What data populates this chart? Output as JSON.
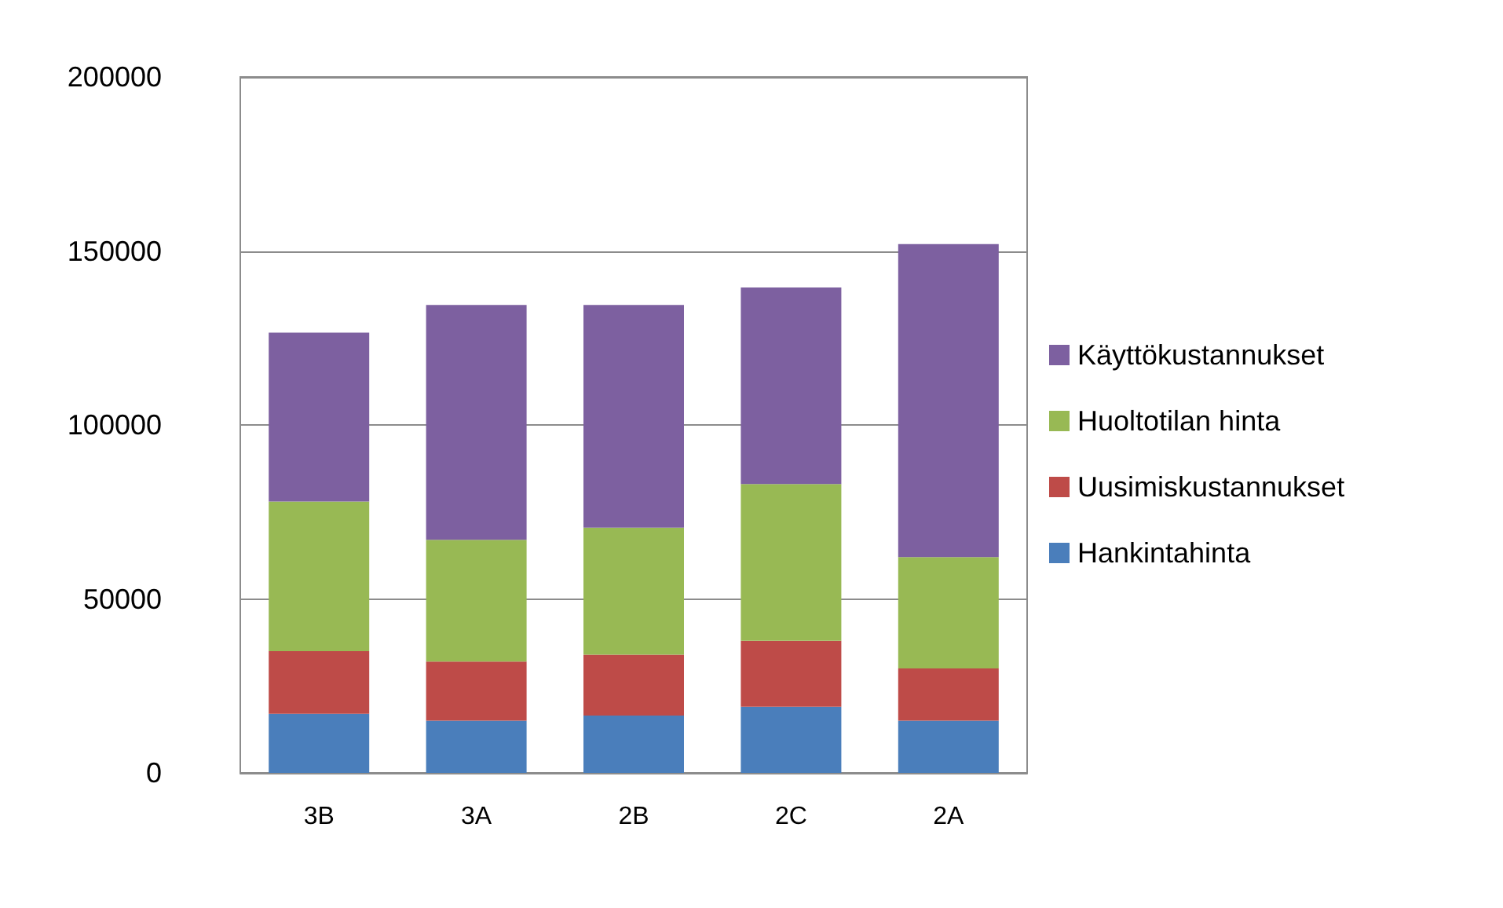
{
  "chart_data": {
    "type": "bar",
    "stacked": true,
    "categories": [
      "3B",
      "3A",
      "2B",
      "2C",
      "2A"
    ],
    "series": [
      {
        "name": "Hankintahinta",
        "color": "#4a7ebb",
        "values": [
          17000,
          15000,
          16500,
          19000,
          15000
        ]
      },
      {
        "name": "Uusimiskustannukset",
        "color": "#be4b48",
        "values": [
          18000,
          17000,
          17500,
          19000,
          15000
        ]
      },
      {
        "name": "Huoltotilan hinta",
        "color": "#98b954",
        "values": [
          43000,
          35000,
          36500,
          45000,
          32000
        ]
      },
      {
        "name": "Käyttökustannukset",
        "color": "#7d60a0",
        "values": [
          48500,
          67500,
          64000,
          56500,
          90000
        ]
      }
    ],
    "ylim": [
      0,
      200000
    ],
    "yticks": [
      0,
      50000,
      100000,
      150000,
      200000
    ],
    "grid": "y",
    "legend": "right"
  }
}
